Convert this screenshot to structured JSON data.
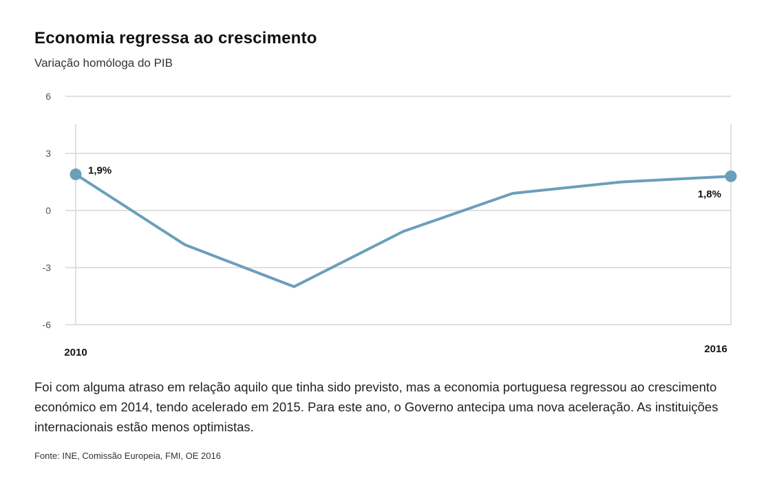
{
  "title": "Economia regressa ao crescimento",
  "subtitle": "Variação homóloga do PIB",
  "body_text": "Foi com alguma atraso em relação aquilo que tinha sido previsto, mas a economia portuguesa regressou ao crescimento económico em 2014, tendo acelerado em 2015. Para este ano, o Governo antecipa uma nova aceleração. As instituições internacionais estão menos optimistas.",
  "source": "Fonte: INE, Comissão Europeia, FMI, OE 2016",
  "colors": {
    "line": "#6a9fba",
    "grid": "#d6d6d6",
    "axis": "#bbbbbb"
  },
  "chart_data": {
    "type": "line",
    "title": "Economia regressa ao crescimento",
    "subtitle": "Variação homóloga do PIB",
    "x": [
      2010,
      2011,
      2012,
      2013,
      2014,
      2015,
      2016
    ],
    "x_tick_labels": [
      "2010",
      "2016"
    ],
    "series": [
      {
        "values": [
          1.9,
          -1.8,
          -4.0,
          -1.1,
          0.9,
          1.5,
          1.8
        ]
      }
    ],
    "y_ticks": [
      6,
      3,
      0,
      -3,
      -6
    ],
    "ylim": [
      -6,
      6
    ],
    "grid": true,
    "annotations": [
      {
        "x": 2010,
        "text": "1,9%"
      },
      {
        "x": 2016,
        "text": "1,8%"
      }
    ]
  }
}
